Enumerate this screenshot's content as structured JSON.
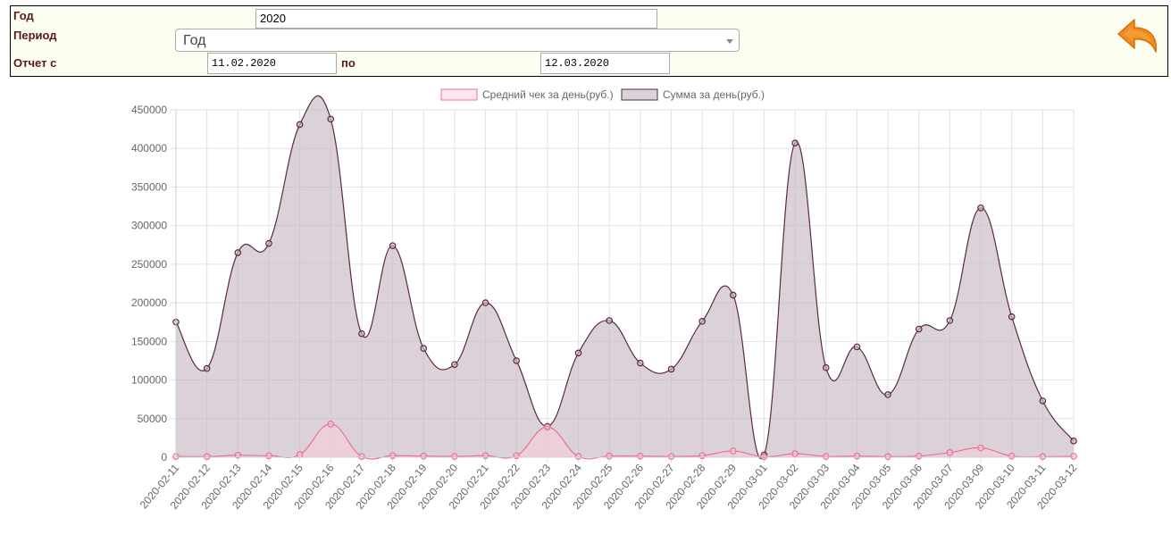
{
  "filters": {
    "year_label": "Год",
    "year_value": "2020",
    "period_label": "Период",
    "period_value": "Год",
    "report_from_label": "Отчет с",
    "date_from": "11.02.2020",
    "to_label": "по",
    "date_to": "12.03.2020"
  },
  "back_button": {
    "icon": "back-arrow-icon",
    "color": "#f08c1e"
  },
  "chart_data": {
    "type": "area",
    "categories": [
      "2020-02-11",
      "2020-02-12",
      "2020-02-13",
      "2020-02-14",
      "2020-02-15",
      "2020-02-16",
      "2020-02-17",
      "2020-02-18",
      "2020-02-19",
      "2020-02-20",
      "2020-02-21",
      "2020-02-22",
      "2020-02-23",
      "2020-02-24",
      "2020-02-25",
      "2020-02-26",
      "2020-02-27",
      "2020-02-28",
      "2020-02-29",
      "2020-03-01",
      "2020-03-02",
      "2020-03-03",
      "2020-03-04",
      "2020-03-05",
      "2020-03-06",
      "2020-03-07",
      "2020-03-09",
      "2020-03-10",
      "2020-03-11",
      "2020-03-12"
    ],
    "series": [
      {
        "name": "Средний чек за день(руб.)",
        "color": "#e8709a",
        "fill": "rgba(255,205,220,0.5)",
        "values": [
          1000,
          800,
          2500,
          2000,
          3500,
          43000,
          1000,
          2000,
          1500,
          1000,
          2000,
          2000,
          39000,
          1000,
          1500,
          1500,
          1000,
          2000,
          8000,
          500,
          4500,
          1000,
          1500,
          800,
          1500,
          6000,
          12000,
          1500,
          800,
          1200
        ]
      },
      {
        "name": "Сумма за день(руб.)",
        "color": "#5a2a42",
        "fill": "rgba(200,185,195,0.65)",
        "values": [
          175000,
          115000,
          265000,
          277000,
          431000,
          438000,
          160000,
          274000,
          141000,
          120000,
          200000,
          125000,
          40000,
          135000,
          177000,
          122000,
          114000,
          176000,
          210000,
          3000,
          407000,
          116000,
          143000,
          81000,
          166000,
          177000,
          323000,
          182000,
          73000,
          21000
        ]
      }
    ],
    "ylim": [
      0,
      450000
    ],
    "yticks": [
      0,
      50000,
      100000,
      150000,
      200000,
      250000,
      300000,
      350000,
      400000,
      450000
    ],
    "grid": true,
    "legend": "top"
  }
}
